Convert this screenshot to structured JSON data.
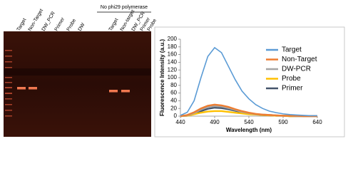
{
  "gel": {
    "lanes": [
      "Target",
      "Non-Target",
      "DW_PCR",
      "Primer",
      "Probe",
      "DW",
      "Target",
      "Non-target",
      "DW_PCR",
      "Primer",
      "Probe"
    ],
    "group_label": "No phi29 polymerase"
  },
  "chart_data": {
    "type": "line",
    "x_label": "Wavelength (nm)",
    "y_label": "Fluorescence Intensity (a.u.)",
    "x": [
      440,
      450,
      460,
      470,
      480,
      490,
      500,
      510,
      520,
      530,
      540,
      550,
      560,
      570,
      580,
      590,
      600,
      610,
      620,
      630,
      640
    ],
    "series": [
      {
        "name": "Target",
        "color": "#5b9bd5",
        "values": [
          2,
          10,
          40,
          100,
          155,
          178,
          165,
          130,
          95,
          65,
          45,
          30,
          20,
          13,
          9,
          6,
          4,
          3,
          2,
          1,
          1
        ]
      },
      {
        "name": "Non-Target",
        "color": "#ed7d31",
        "values": [
          0,
          3,
          10,
          20,
          27,
          30,
          28,
          24,
          18,
          13,
          9,
          6,
          4,
          3,
          2,
          1,
          1,
          1,
          0,
          0,
          0
        ]
      },
      {
        "name": "DW-PCR",
        "color": "#a5a5a5",
        "values": [
          0,
          2,
          8,
          17,
          24,
          26,
          25,
          21,
          16,
          11,
          8,
          5,
          4,
          3,
          2,
          1,
          1,
          0,
          0,
          0,
          0
        ]
      },
      {
        "name": "Probe",
        "color": "#ffc000",
        "values": [
          0,
          1,
          5,
          9,
          12,
          13,
          13,
          11,
          9,
          7,
          5,
          4,
          3,
          2,
          1,
          1,
          0,
          0,
          0,
          0,
          0
        ]
      },
      {
        "name": "Primer",
        "color": "#44546a",
        "values": [
          0,
          1,
          6,
          13,
          19,
          22,
          21,
          18,
          14,
          10,
          7,
          5,
          3,
          2,
          1,
          1,
          0,
          0,
          0,
          0,
          0
        ]
      }
    ],
    "xlim": [
      440,
      640
    ],
    "xticks": [
      440,
      490,
      540,
      590,
      640
    ],
    "ylim": [
      0,
      200
    ],
    "yticks": [
      0,
      20,
      40,
      60,
      80,
      100,
      120,
      140,
      160,
      180,
      200
    ],
    "legend": "right"
  }
}
